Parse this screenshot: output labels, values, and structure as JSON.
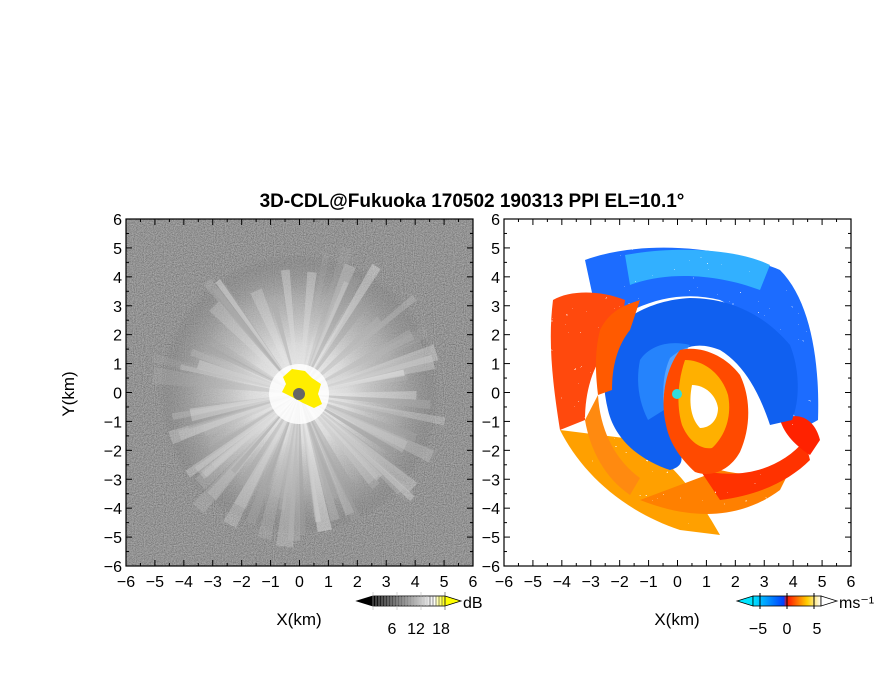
{
  "figure": {
    "title": "3D-CDL@Fukuoka 170502 190313 PPI EL=10.1°"
  },
  "chart_data": [
    {
      "type": "heatmap",
      "panel": "left",
      "quantity_unit": "dB",
      "xlabel": "X(km)",
      "ylabel": "Y(km)",
      "xlim": [
        -6,
        6
      ],
      "ylim": [
        -6,
        6
      ],
      "x_ticks": [
        -6,
        -5,
        -4,
        -3,
        -2,
        -1,
        0,
        1,
        2,
        3,
        4,
        5,
        6
      ],
      "y_ticks": [
        -6,
        -5,
        -4,
        -3,
        -2,
        -1,
        0,
        1,
        2,
        3,
        4,
        5,
        6
      ],
      "colormap": "grayscale",
      "colorbar": {
        "ticks": [
          6,
          12,
          18
        ],
        "label": "dB",
        "colors": [
          "#000000",
          "#ffffff",
          "#ffff00"
        ]
      },
      "features": {
        "near_range_saturation_color": "#ffee00",
        "radar_center_color": "#666666",
        "echo_radius_km": 4.6
      }
    },
    {
      "type": "heatmap",
      "panel": "right",
      "quantity_unit": "ms⁻¹",
      "xlabel": "X(km)",
      "ylabel": "",
      "xlim": [
        -6,
        6
      ],
      "ylim": [
        -6,
        6
      ],
      "x_ticks": [
        -6,
        -5,
        -4,
        -3,
        -2,
        -1,
        0,
        1,
        2,
        3,
        4,
        5,
        6
      ],
      "y_ticks": [
        -6,
        -5,
        -4,
        -3,
        -2,
        -1,
        0,
        1,
        2,
        3,
        4,
        5,
        6
      ],
      "colormap": "doppler-diverging",
      "colorbar": {
        "ticks": [
          -5,
          0,
          5
        ],
        "label": "ms⁻¹",
        "colors": [
          "#00e5ff",
          "#1060ff",
          "#ff2000",
          "#ffd000",
          "#ffffff"
        ]
      },
      "features": {
        "radar_center_color": "#33dddd",
        "echo_radius_km": 4.8
      }
    }
  ],
  "tick_labels": {
    "x": [
      "−6",
      "−5",
      "−4",
      "−3",
      "−2",
      "−1",
      "0",
      "1",
      "2",
      "3",
      "4",
      "5",
      "6"
    ],
    "y": [
      "6",
      "5",
      "4",
      "3",
      "2",
      "1",
      "0",
      "−1",
      "−2",
      "−3",
      "−4",
      "−5",
      "−6"
    ]
  },
  "colorbar_labels": {
    "left": {
      "unit": "dB",
      "ticks": [
        "6",
        "12",
        "18"
      ]
    },
    "right": {
      "unit": "ms⁻¹",
      "ticks": [
        "−5",
        "0",
        "5"
      ]
    }
  },
  "axis_labels": {
    "left_x": "X(km)",
    "left_y": "Y(km)",
    "right_x": "X(km)"
  }
}
